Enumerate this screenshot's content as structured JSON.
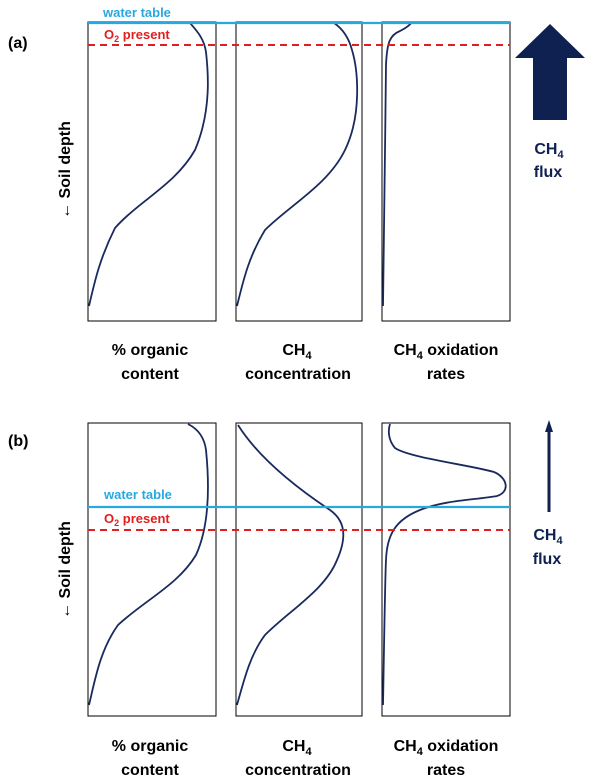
{
  "panels": [
    {
      "label": "(a)",
      "y_axis_label": "← Soil depth",
      "water_table_label": "water table",
      "o2_prefix": "O",
      "o2_sub": "2",
      "o2_suffix": " present",
      "flux_label": "CH",
      "flux_sub": "4",
      "flux_word": "flux",
      "flux_magnitude": "large",
      "columns": [
        {
          "line1": "% organic",
          "line2": "content"
        },
        {
          "line1_main": "CH",
          "line1_sub": "4",
          "line2": "concentration"
        },
        {
          "line1_main": "CH",
          "line1_sub": "4",
          "line1_rest": " oxidation",
          "line2": "rates"
        }
      ]
    },
    {
      "label": "(b)",
      "y_axis_label": "← Soil depth",
      "water_table_label": "water table",
      "o2_prefix": "O",
      "o2_sub": "2",
      "o2_suffix": " present",
      "flux_label": "CH",
      "flux_sub": "4",
      "flux_word": "flux",
      "flux_magnitude": "small",
      "columns": [
        {
          "line1": "% organic",
          "line2": "content"
        },
        {
          "line1_main": "CH",
          "line1_sub": "4",
          "line2": "concentration"
        },
        {
          "line1_main": "CH",
          "line1_sub": "4",
          "line1_rest": " oxidation",
          "line2": "rates"
        }
      ]
    }
  ],
  "colors": {
    "water_table": "#29a8e0",
    "o2_line": "#e02020",
    "curve": "#1b2a5c",
    "arrow": "#0f2150",
    "o2_text": "#e02020",
    "water_text": "#29a8e0",
    "flux_text": "#0f2150"
  }
}
